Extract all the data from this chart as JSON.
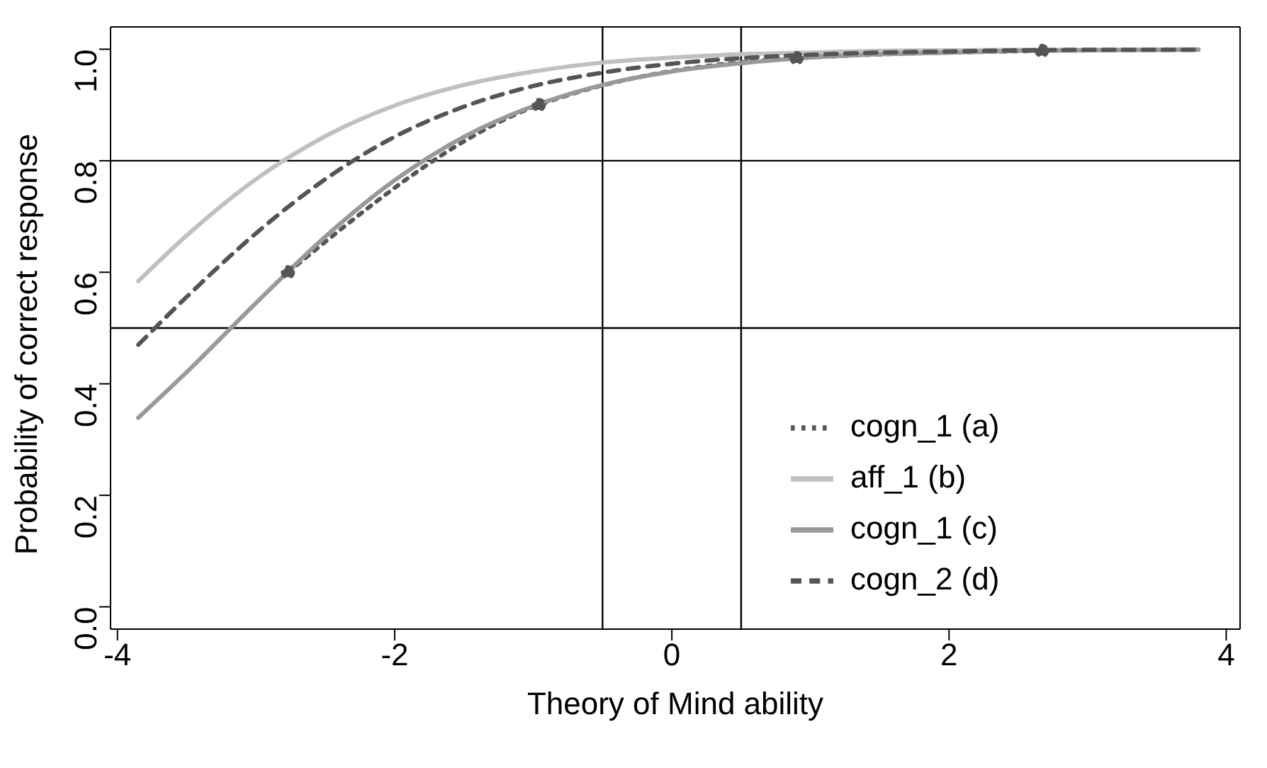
{
  "chart_data": {
    "type": "line",
    "xlabel": "Theory of Mind ability",
    "ylabel": "Probability of correct response",
    "xlim": [
      -4.05,
      4.1
    ],
    "xticks": [
      -4,
      -2,
      0,
      2,
      4
    ],
    "ylim": [
      -0.04,
      1.04
    ],
    "yticks": [
      {
        "value": 0,
        "label": "0.0"
      },
      0.2,
      0.4,
      0.6,
      0.8,
      {
        "value": 1,
        "label": "1.0"
      }
    ],
    "grid": false,
    "legend": "bottom right",
    "ref_lines": [
      {
        "axis": "x",
        "value": -0.5,
        "color": "#000000"
      },
      {
        "axis": "x",
        "value": 0.5,
        "color": "#000000"
      },
      {
        "axis": "y",
        "value": 0.8,
        "color": "#000000"
      },
      {
        "axis": "y",
        "value": 0.5,
        "color": "#000000"
      }
    ],
    "series": [
      {
        "name": "cogn_1 (a)",
        "color": "#555555",
        "line_style": "dotted",
        "marker": "circle",
        "x": [
          -2.77,
          -0.96,
          0.9,
          2.67
        ],
        "values": [
          0.6,
          0.9,
          0.984,
          0.997
        ]
      },
      {
        "name": "aff_1 (b)",
        "color": "#c0c0c0",
        "line_style": "solid",
        "marker": "none",
        "x": [
          -3.85,
          -3.5,
          -3,
          -2.5,
          -2,
          -1.5,
          -1,
          -0.5,
          0,
          0.5,
          1,
          1.5,
          2,
          2.5,
          3,
          3.8
        ],
        "values": [
          0.584,
          0.666,
          0.767,
          0.844,
          0.899,
          0.936,
          0.96,
          0.976,
          0.985,
          0.991,
          0.994,
          0.997,
          0.998,
          0.999,
          0.999,
          1.0
        ]
      },
      {
        "name": "cogn_1 (c)",
        "color": "#999999",
        "line_style": "solid",
        "marker": "none",
        "x": [
          -3.85,
          -3.5,
          -3,
          -2.5,
          -2,
          -1.5,
          -1,
          -0.5,
          0,
          0.5,
          1,
          1.5,
          2,
          2.5,
          3,
          3.8
        ],
        "values": [
          0.339,
          0.421,
          0.545,
          0.664,
          0.765,
          0.843,
          0.898,
          0.936,
          0.96,
          0.975,
          0.985,
          0.991,
          0.994,
          0.997,
          0.998,
          0.999
        ]
      },
      {
        "name": "cogn_2 (d)",
        "color": "#555555",
        "line_style": "dashed",
        "marker": "none",
        "x": [
          -3.85,
          -3.5,
          -3,
          -2.5,
          -2,
          -1.5,
          -1,
          -0.5,
          0,
          0.5,
          1,
          1.5,
          2,
          2.5,
          3,
          3.8
        ],
        "values": [
          0.47,
          0.556,
          0.67,
          0.767,
          0.843,
          0.897,
          0.934,
          0.958,
          0.974,
          0.984,
          0.99,
          0.994,
          0.996,
          0.998,
          0.999,
          0.999
        ]
      }
    ]
  }
}
